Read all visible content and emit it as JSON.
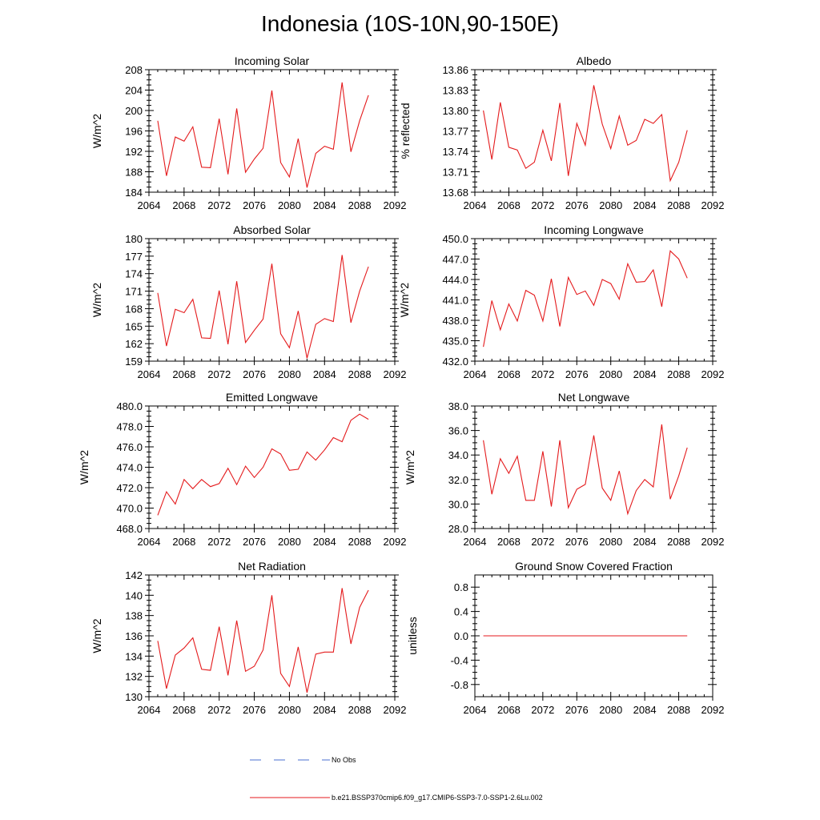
{
  "figure": {
    "title": "Indonesia (10S-10N,90-150E)"
  },
  "colors": {
    "series": "#e41a1c",
    "obs": "#4a6fd1",
    "axis": "#000000"
  },
  "legend": {
    "entries": [
      {
        "label": "No Obs",
        "style": "dashed"
      },
      {
        "label": "b.e21.BSSP370cmip6.f09_g17.CMIP6-SSP3-7.0-SSP1-2.6Lu.002",
        "style": "solid"
      }
    ]
  },
  "chart_data": [
    {
      "type": "line",
      "title": "Incoming Solar",
      "ylabel": "W/m^2",
      "xlim": [
        2064,
        2092
      ],
      "ylim": [
        184,
        208
      ],
      "xticks": [
        "2064",
        "2068",
        "2072",
        "2076",
        "2080",
        "2084",
        "2088",
        "2092"
      ],
      "yticks": [
        "184",
        "188",
        "192",
        "196",
        "200",
        "204",
        "208"
      ],
      "x": [
        2065,
        2066,
        2067,
        2068,
        2069,
        2070,
        2071,
        2072,
        2073,
        2074,
        2075,
        2076,
        2077,
        2078,
        2079,
        2080,
        2081,
        2082,
        2083,
        2084,
        2085,
        2086,
        2087,
        2088,
        2089
      ],
      "values": [
        198.0,
        187.2,
        194.8,
        194.0,
        196.8,
        188.9,
        188.8,
        198.4,
        187.5,
        200.4,
        187.9,
        190.5,
        192.6,
        203.9,
        189.8,
        187.0,
        194.5,
        184.9,
        191.6,
        193.0,
        192.4,
        205.5,
        191.9,
        198.0,
        203.0
      ]
    },
    {
      "type": "line",
      "title": "Albedo",
      "ylabel": "% reflected",
      "xlim": [
        2064,
        2092
      ],
      "ylim": [
        13.68,
        13.86
      ],
      "xticks": [
        "2064",
        "2068",
        "2072",
        "2076",
        "2080",
        "2084",
        "2088",
        "2092"
      ],
      "yticks": [
        "13.68",
        "13.71",
        "13.74",
        "13.77",
        "13.80",
        "13.83",
        "13.86"
      ],
      "x": [
        2065,
        2066,
        2067,
        2068,
        2069,
        2070,
        2071,
        2072,
        2073,
        2074,
        2075,
        2076,
        2077,
        2078,
        2079,
        2080,
        2081,
        2082,
        2083,
        2084,
        2085,
        2086,
        2087,
        2088,
        2089
      ],
      "values": [
        13.8,
        13.728,
        13.812,
        13.746,
        13.742,
        13.715,
        13.724,
        13.771,
        13.726,
        13.811,
        13.704,
        13.781,
        13.749,
        13.837,
        13.78,
        13.744,
        13.792,
        13.749,
        13.756,
        13.787,
        13.781,
        13.794,
        13.697,
        13.724,
        13.771
      ]
    },
    {
      "type": "line",
      "title": "Absorbed Solar",
      "ylabel": "W/m^2",
      "xlim": [
        2064,
        2092
      ],
      "ylim": [
        159,
        180
      ],
      "xticks": [
        "2064",
        "2068",
        "2072",
        "2076",
        "2080",
        "2084",
        "2088",
        "2092"
      ],
      "yticks": [
        "159",
        "162",
        "165",
        "168",
        "171",
        "174",
        "177",
        "180"
      ],
      "x": [
        2065,
        2066,
        2067,
        2068,
        2069,
        2070,
        2071,
        2072,
        2073,
        2074,
        2075,
        2076,
        2077,
        2078,
        2079,
        2080,
        2081,
        2082,
        2083,
        2084,
        2085,
        2086,
        2087,
        2088,
        2089
      ],
      "values": [
        170.7,
        161.6,
        167.9,
        167.3,
        169.6,
        163.0,
        162.9,
        171.1,
        161.9,
        172.7,
        162.2,
        164.3,
        166.2,
        175.7,
        163.7,
        161.3,
        167.6,
        159.5,
        165.3,
        166.3,
        165.8,
        177.2,
        165.6,
        171.0,
        175.2
      ]
    },
    {
      "type": "line",
      "title": "Incoming Longwave",
      "ylabel": "W/m^2",
      "xlim": [
        2064,
        2092
      ],
      "ylim": [
        432.0,
        450.0
      ],
      "xticks": [
        "2064",
        "2068",
        "2072",
        "2076",
        "2080",
        "2084",
        "2088",
        "2092"
      ],
      "yticks": [
        "432.0",
        "435.0",
        "438.0",
        "441.0",
        "444.0",
        "447.0",
        "450.0"
      ],
      "x": [
        2065,
        2066,
        2067,
        2068,
        2069,
        2070,
        2071,
        2072,
        2073,
        2074,
        2075,
        2076,
        2077,
        2078,
        2079,
        2080,
        2081,
        2082,
        2083,
        2084,
        2085,
        2086,
        2087,
        2088,
        2089
      ],
      "values": [
        434.1,
        440.9,
        436.6,
        440.4,
        437.9,
        442.4,
        441.7,
        437.9,
        444.1,
        437.1,
        444.3,
        441.8,
        442.3,
        440.2,
        444.0,
        443.4,
        441.1,
        446.3,
        443.6,
        443.7,
        445.4,
        440.0,
        448.2,
        447.0,
        444.2
      ]
    },
    {
      "type": "line",
      "title": "Emitted Longwave",
      "ylabel": "W/m^2",
      "xlim": [
        2064,
        2092
      ],
      "ylim": [
        468.0,
        480.0
      ],
      "xticks": [
        "2064",
        "2068",
        "2072",
        "2076",
        "2080",
        "2084",
        "2088",
        "2092"
      ],
      "yticks": [
        "468.0",
        "470.0",
        "472.0",
        "474.0",
        "476.0",
        "478.0",
        "480.0"
      ],
      "x": [
        2065,
        2066,
        2067,
        2068,
        2069,
        2070,
        2071,
        2072,
        2073,
        2074,
        2075,
        2076,
        2077,
        2078,
        2079,
        2080,
        2081,
        2082,
        2083,
        2084,
        2085,
        2086,
        2087,
        2088,
        2089
      ],
      "values": [
        469.3,
        471.6,
        470.4,
        472.8,
        471.9,
        472.8,
        472.1,
        472.4,
        473.9,
        472.3,
        474.1,
        473.0,
        474.0,
        475.8,
        475.3,
        473.7,
        473.8,
        475.5,
        474.7,
        475.7,
        476.9,
        476.5,
        478.6,
        479.2,
        478.7
      ]
    },
    {
      "type": "line",
      "title": "Net Longwave",
      "ylabel": "W/m^2",
      "xlim": [
        2064,
        2092
      ],
      "ylim": [
        28.0,
        38.0
      ],
      "xticks": [
        "2064",
        "2068",
        "2072",
        "2076",
        "2080",
        "2084",
        "2088",
        "2092"
      ],
      "yticks": [
        "28.0",
        "30.0",
        "32.0",
        "34.0",
        "36.0",
        "38.0"
      ],
      "x": [
        2065,
        2066,
        2067,
        2068,
        2069,
        2070,
        2071,
        2072,
        2073,
        2074,
        2075,
        2076,
        2077,
        2078,
        2079,
        2080,
        2081,
        2082,
        2083,
        2084,
        2085,
        2086,
        2087,
        2088,
        2089
      ],
      "values": [
        35.2,
        30.8,
        33.7,
        32.5,
        33.9,
        30.3,
        30.3,
        34.3,
        29.8,
        35.2,
        29.7,
        31.2,
        31.6,
        35.6,
        31.3,
        30.3,
        32.7,
        29.2,
        31.1,
        32.0,
        31.4,
        36.5,
        30.4,
        32.3,
        34.6
      ]
    },
    {
      "type": "line",
      "title": "Net Radiation",
      "ylabel": "W/m^2",
      "xlim": [
        2064,
        2092
      ],
      "ylim": [
        130,
        142
      ],
      "xticks": [
        "2064",
        "2068",
        "2072",
        "2076",
        "2080",
        "2084",
        "2088",
        "2092"
      ],
      "yticks": [
        "130",
        "132",
        "134",
        "136",
        "138",
        "140",
        "142"
      ],
      "x": [
        2065,
        2066,
        2067,
        2068,
        2069,
        2070,
        2071,
        2072,
        2073,
        2074,
        2075,
        2076,
        2077,
        2078,
        2079,
        2080,
        2081,
        2082,
        2083,
        2084,
        2085,
        2086,
        2087,
        2088,
        2089
      ],
      "values": [
        135.5,
        130.8,
        134.1,
        134.8,
        135.8,
        132.7,
        132.6,
        136.9,
        132.1,
        137.5,
        132.5,
        133.0,
        134.6,
        140.0,
        132.3,
        131.0,
        134.9,
        130.4,
        134.2,
        134.4,
        134.4,
        140.7,
        135.2,
        138.8,
        140.5
      ]
    },
    {
      "type": "line",
      "title": "Ground Snow Covered Fraction",
      "ylabel": "unitless",
      "xlim": [
        2064,
        2092
      ],
      "ylim": [
        -1.0,
        1.0
      ],
      "xticks": [
        "2064",
        "2068",
        "2072",
        "2076",
        "2080",
        "2084",
        "2088",
        "2092"
      ],
      "yticks": [
        "-0.8",
        "-0.4",
        "0.0",
        "0.4",
        "0.8"
      ],
      "x": [
        2065,
        2066,
        2067,
        2068,
        2069,
        2070,
        2071,
        2072,
        2073,
        2074,
        2075,
        2076,
        2077,
        2078,
        2079,
        2080,
        2081,
        2082,
        2083,
        2084,
        2085,
        2086,
        2087,
        2088,
        2089
      ],
      "values": [
        0,
        0,
        0,
        0,
        0,
        0,
        0,
        0,
        0,
        0,
        0,
        0,
        0,
        0,
        0,
        0,
        0,
        0,
        0,
        0,
        0,
        0,
        0,
        0,
        0
      ]
    }
  ]
}
